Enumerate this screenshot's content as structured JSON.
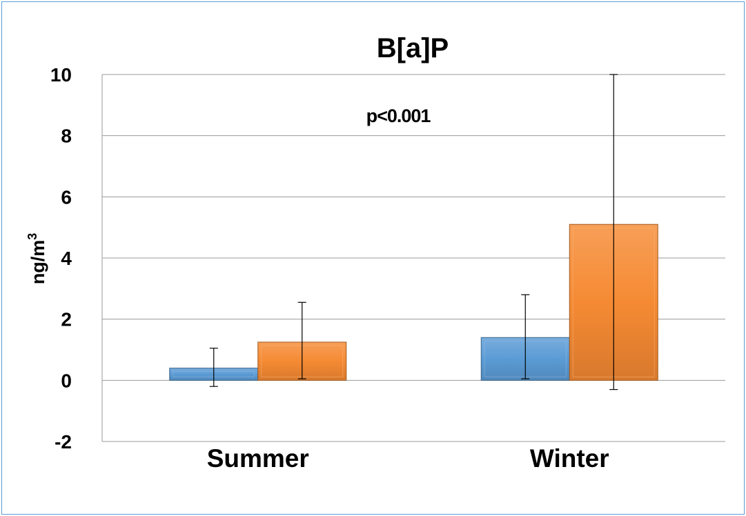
{
  "chart_data": {
    "type": "bar",
    "title": "B[a]P",
    "ylabel": "ng/m",
    "ylabel_superscript": "3",
    "xlabel": "",
    "ylim": [
      -2,
      10
    ],
    "yticks": [
      -2,
      0,
      2,
      4,
      6,
      8,
      10
    ],
    "grid": true,
    "legend": "none",
    "categories": [
      "Summer",
      "Winter"
    ],
    "series": [
      {
        "color": "#5b9bd5",
        "values": [
          0.4,
          1.4
        ],
        "error_low": [
          0.6,
          1.35
        ],
        "error_high": [
          0.65,
          1.4
        ]
      },
      {
        "color": "#f58a33",
        "values": [
          1.25,
          5.1
        ],
        "error_low": [
          1.2,
          5.4
        ],
        "error_high": [
          1.3,
          4.9
        ]
      }
    ],
    "annotations": [
      {
        "text": "p<0.001"
      }
    ]
  },
  "colors": {
    "frame": "#5b9bd5",
    "grid": "#9a9a9a"
  }
}
